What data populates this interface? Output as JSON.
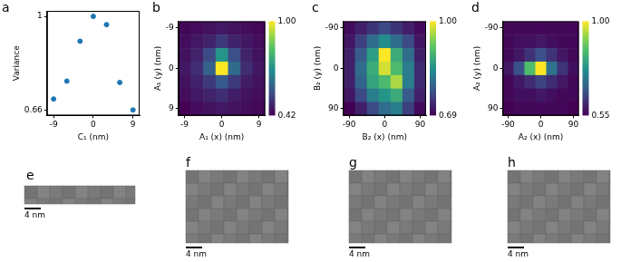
{
  "chart_data": [
    {
      "panel": "a",
      "type": "scatter",
      "x_label": "C₁ (nm)",
      "y_label": "Variance",
      "x": [
        -9,
        -6,
        -3,
        0,
        3,
        6,
        9
      ],
      "values": [
        0.7,
        0.765,
        0.91,
        1.0,
        0.97,
        0.76,
        0.66
      ],
      "color": "#1f77b4",
      "marker": "circle",
      "grid": false,
      "xlim": [
        -10.5,
        10.5
      ],
      "xticks": [
        -9,
        0,
        9
      ],
      "ylim": [
        0.64,
        1.02
      ],
      "yticks": [
        0.66,
        1
      ]
    },
    {
      "panel": "b",
      "type": "heatmap",
      "x_label": "A₁ (x) (nm)",
      "y_label": "A₁ (y) (nm)",
      "grid": false,
      "x": [
        -9,
        -6,
        -3,
        0,
        3,
        6,
        9
      ],
      "y": [
        -9,
        -6,
        -3,
        0,
        3,
        6,
        9
      ],
      "cells": [
        [
          0.43,
          0.44,
          0.45,
          0.46,
          0.45,
          0.44,
          0.43
        ],
        [
          0.44,
          0.46,
          0.48,
          0.52,
          0.48,
          0.46,
          0.44
        ],
        [
          0.45,
          0.48,
          0.55,
          0.72,
          0.56,
          0.48,
          0.45
        ],
        [
          0.46,
          0.5,
          0.6,
          1.0,
          0.62,
          0.5,
          0.46
        ],
        [
          0.45,
          0.48,
          0.52,
          0.58,
          0.52,
          0.47,
          0.45
        ],
        [
          0.44,
          0.46,
          0.48,
          0.5,
          0.47,
          0.45,
          0.44
        ],
        [
          0.42,
          0.44,
          0.45,
          0.46,
          0.45,
          0.44,
          0.43
        ]
      ],
      "xlim": [
        -10.5,
        10.5
      ],
      "xticks": [
        -9,
        0,
        9
      ],
      "ylim": [
        10.5,
        -10.5
      ],
      "yticks": [
        -9,
        0,
        9
      ],
      "colorbar_range": [
        0.42,
        1
      ],
      "colorbar_ticks": [
        0.42,
        {
          "value": 1,
          "label": "1.00"
        }
      ]
    },
    {
      "panel": "c",
      "type": "heatmap",
      "x_label": "B₂ (x) (nm)",
      "y_label": "B₂ (y) (nm)",
      "grid": false,
      "x": [
        -90,
        -60,
        -30,
        0,
        30,
        60,
        90
      ],
      "y": [
        -90,
        -60,
        -30,
        0,
        30,
        60,
        90
      ],
      "cells": [
        [
          0.7,
          0.72,
          0.74,
          0.76,
          0.74,
          0.72,
          0.7
        ],
        [
          0.71,
          0.75,
          0.8,
          0.84,
          0.8,
          0.76,
          0.71
        ],
        [
          0.72,
          0.78,
          0.86,
          1.0,
          0.88,
          0.8,
          0.72
        ],
        [
          0.72,
          0.8,
          0.88,
          0.98,
          0.9,
          0.82,
          0.73
        ],
        [
          0.72,
          0.79,
          0.87,
          0.9,
          0.96,
          0.82,
          0.73
        ],
        [
          0.71,
          0.76,
          0.82,
          0.85,
          0.88,
          0.78,
          0.72
        ],
        [
          0.69,
          0.72,
          0.76,
          0.8,
          0.82,
          0.75,
          0.7
        ]
      ],
      "xlim": [
        -105,
        105
      ],
      "xticks": [
        -90,
        0,
        90
      ],
      "ylim": [
        105,
        -105
      ],
      "yticks": [
        -90,
        0,
        90
      ],
      "colorbar_range": [
        0.69,
        1
      ],
      "colorbar_ticks": [
        0.69,
        {
          "value": 1,
          "label": "1.00"
        }
      ]
    },
    {
      "panel": "d",
      "type": "heatmap",
      "x_label": "A₂ (x) (nm)",
      "y_label": "A₂ (y) (nm)",
      "grid": false,
      "x": [
        -90,
        -60,
        -30,
        0,
        30,
        60,
        90
      ],
      "y": [
        -90,
        -60,
        -30,
        0,
        30,
        60,
        90
      ],
      "cells": [
        [
          0.56,
          0.56,
          0.56,
          0.56,
          0.56,
          0.56,
          0.56
        ],
        [
          0.56,
          0.57,
          0.57,
          0.58,
          0.57,
          0.56,
          0.56
        ],
        [
          0.56,
          0.58,
          0.62,
          0.66,
          0.62,
          0.58,
          0.56
        ],
        [
          0.58,
          0.66,
          0.86,
          1.0,
          0.72,
          0.62,
          0.57
        ],
        [
          0.56,
          0.58,
          0.61,
          0.64,
          0.61,
          0.58,
          0.56
        ],
        [
          0.56,
          0.57,
          0.57,
          0.58,
          0.57,
          0.56,
          0.56
        ],
        [
          0.55,
          0.56,
          0.56,
          0.56,
          0.56,
          0.56,
          0.55
        ]
      ],
      "xlim": [
        -105,
        105
      ],
      "xticks": [
        -90,
        0,
        90
      ],
      "ylim": [
        105,
        -105
      ],
      "yticks": [
        -90,
        0,
        90
      ],
      "colorbar_range": [
        0.55,
        1
      ],
      "colorbar_ticks": [
        0.55,
        {
          "value": 1,
          "label": "1.00"
        }
      ]
    }
  ],
  "images": [
    {
      "panel": "e",
      "scale_bar": "4 nm"
    },
    {
      "panel": "f",
      "scale_bar": "4 nm"
    },
    {
      "panel": "g",
      "scale_bar": "4 nm"
    },
    {
      "panel": "h",
      "scale_bar": "4 nm"
    }
  ]
}
